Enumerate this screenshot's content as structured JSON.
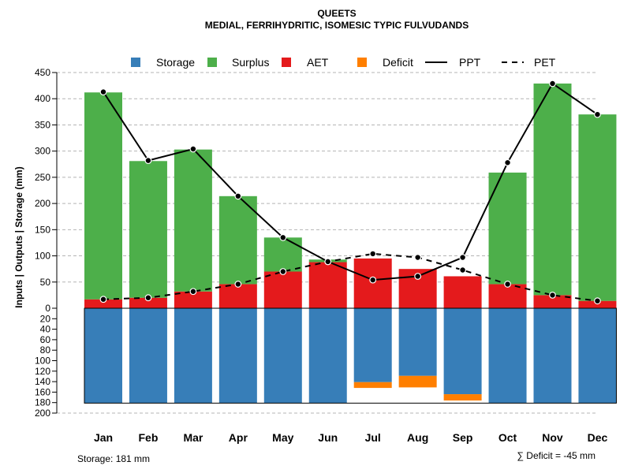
{
  "chart_data": {
    "type": "bar",
    "title": "QUEETS",
    "subtitle": "MEDIAL, FERRIHYDRITIC, ISOMESIC TYPIC FULVUDANDS",
    "ylabel": "Inputs | Outputs | Storage    (mm)",
    "categories": [
      "Jan",
      "Feb",
      "Mar",
      "Apr",
      "May",
      "Jun",
      "Jul",
      "Aug",
      "Sep",
      "Oct",
      "Nov",
      "Dec"
    ],
    "upper_ylim": [
      0,
      450
    ],
    "upper_ticks": [
      "0",
      "50",
      "100",
      "150",
      "200",
      "250",
      "300",
      "350",
      "400",
      "450"
    ],
    "lower_ylim": [
      0,
      200
    ],
    "lower_ticks": [
      "20",
      "40",
      "60",
      "80",
      "100",
      "120",
      "140",
      "160",
      "180",
      "200"
    ],
    "series": [
      {
        "name": "AET",
        "color": "#E41A1C",
        "values": [
          17,
          20,
          32,
          46,
          70,
          88,
          95,
          75,
          61,
          46,
          25,
          14
        ]
      },
      {
        "name": "Surplus",
        "color": "#4DAF4A",
        "values": [
          395,
          261,
          271,
          168,
          65,
          5,
          0,
          0,
          0,
          213,
          404,
          356
        ]
      },
      {
        "name": "Storage",
        "color": "#377EB8",
        "values": [
          181,
          181,
          181,
          181,
          181,
          181,
          141,
          129,
          164,
          181,
          181,
          181
        ]
      },
      {
        "name": "Deficit",
        "color": "#FF7F00",
        "values": [
          0,
          0,
          0,
          0,
          0,
          0,
          11,
          22,
          12,
          0,
          0,
          0
        ]
      },
      {
        "name": "PPT",
        "color": "#000000",
        "style": "solid",
        "values": [
          413,
          282,
          304,
          214,
          135,
          89,
          54,
          61,
          97,
          278,
          429,
          370
        ]
      },
      {
        "name": "PET",
        "color": "#000000",
        "style": "dashed",
        "values": [
          17,
          20,
          32,
          46,
          70,
          89,
          104,
          97,
          73,
          46,
          25,
          14
        ]
      }
    ],
    "legend": {
      "position": "top",
      "items": [
        {
          "label": "Storage",
          "kind": "square",
          "color": "#377EB8"
        },
        {
          "label": "Surplus",
          "kind": "square",
          "color": "#4DAF4A"
        },
        {
          "label": "AET",
          "kind": "square",
          "color": "#E41A1C"
        },
        {
          "label": "Deficit",
          "kind": "square",
          "color": "#FF7F00"
        },
        {
          "label": "PPT",
          "kind": "line",
          "color": "#000000"
        },
        {
          "label": "PET",
          "kind": "dash",
          "color": "#000000"
        }
      ]
    },
    "storage_note": "Storage: 181 mm",
    "deficit_note": "∑ Deficit = -45 mm",
    "grid": true
  }
}
